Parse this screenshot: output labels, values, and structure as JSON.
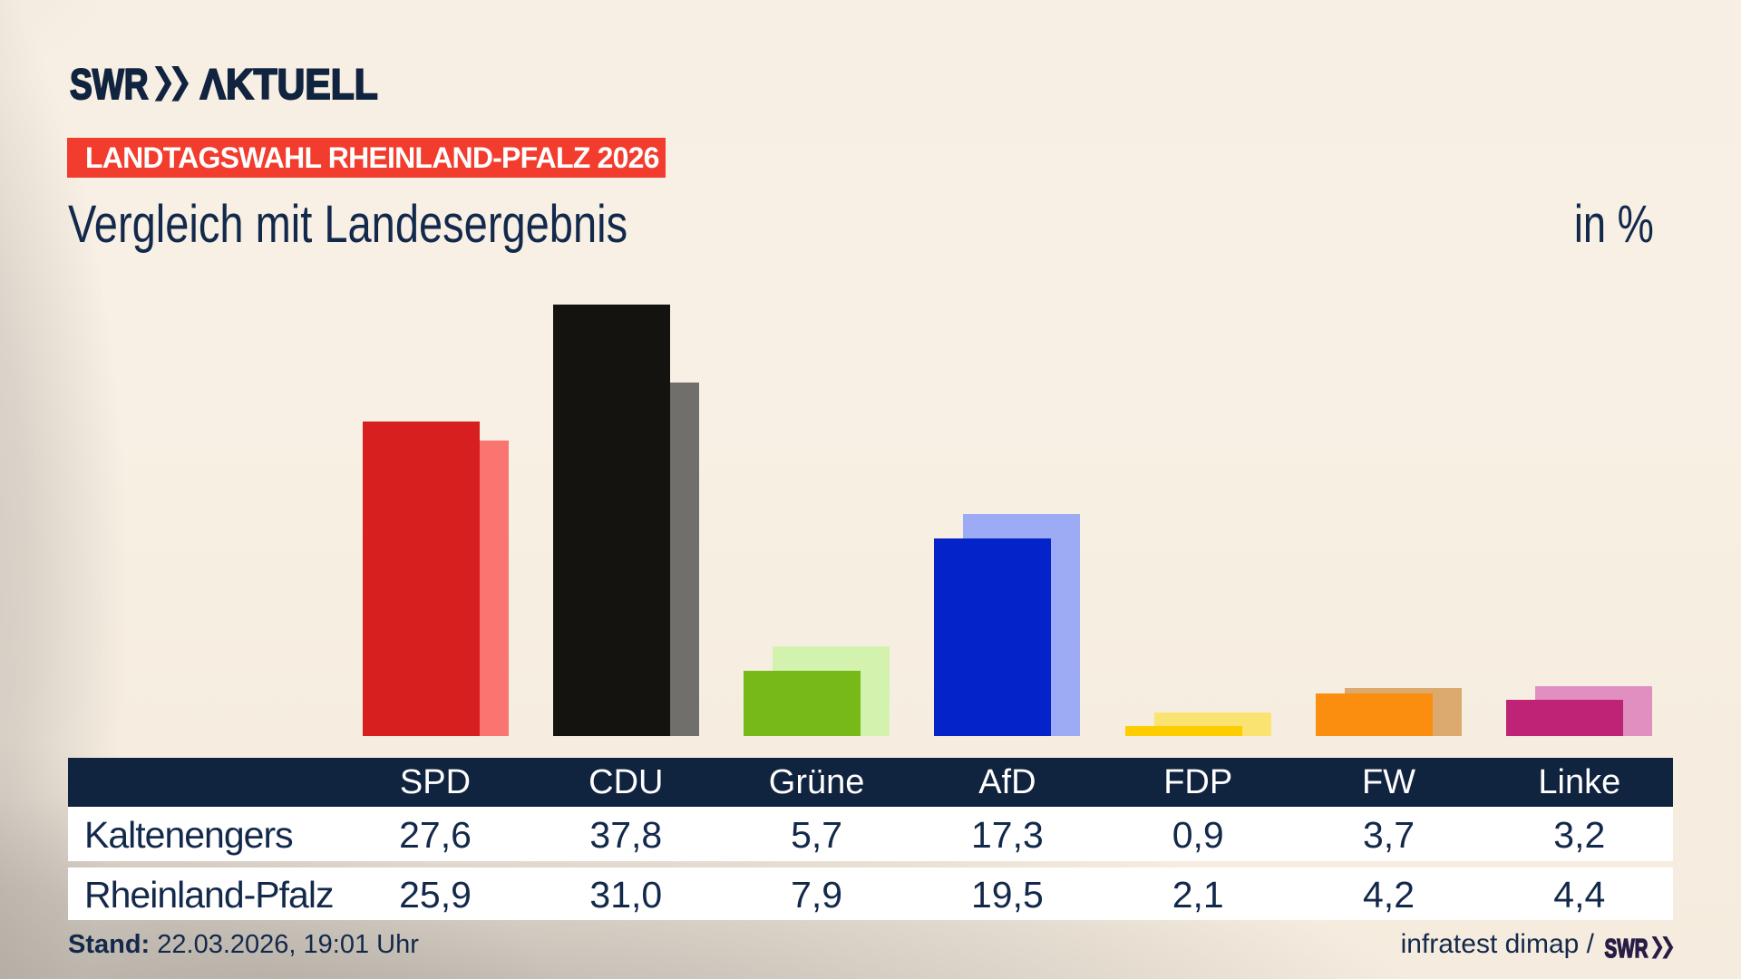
{
  "brand": {
    "name": "SWR",
    "suffix": "AKTUELL",
    "logo_display_suffix": "ΛKTUELL",
    "color": "#10233f"
  },
  "header": {
    "badge": "LANDTAGSWAHL RHEINLAND-PFALZ 2026",
    "badge_bg": "#f23c2d",
    "badge_fg": "#ffffff",
    "title": "Vergleich mit Landesergebnis",
    "unit_label": "in %",
    "text_color": "#13294b"
  },
  "chart_data": {
    "type": "bar",
    "title": "Vergleich mit Landesergebnis",
    "unit": "in %",
    "categories": [
      "SPD",
      "CDU",
      "Grüne",
      "AfD",
      "FDP",
      "FW",
      "Linke"
    ],
    "series": [
      {
        "name": "Kaltenengers",
        "values": [
          27.6,
          37.8,
          5.7,
          17.3,
          0.9,
          3.7,
          3.2
        ]
      },
      {
        "name": "Rheinland-Pfalz",
        "values": [
          25.9,
          31.0,
          7.9,
          19.5,
          2.1,
          4.2,
          4.4
        ]
      }
    ],
    "bar_colors_front": [
      "#d71f1f",
      "#151310",
      "#76b918",
      "#0424c9",
      "#fdcd00",
      "#fb8d0f",
      "#bf2375"
    ],
    "bar_colors_back": [
      "#fb7570",
      "#716f6b",
      "#d3f2ae",
      "#9cabf4",
      "#fbe372",
      "#dca96e",
      "#e18fc0"
    ],
    "ylim": [
      0,
      40
    ],
    "grid": false,
    "legend": false
  },
  "table": {
    "header_bg": "#10233f",
    "header_fg": "#ffffff",
    "row_bg": "#ffffff",
    "text_color": "#13294b",
    "columns": [
      "SPD",
      "CDU",
      "Grüne",
      "AfD",
      "FDP",
      "FW",
      "Linke"
    ],
    "rows": [
      {
        "label": "Kaltenengers",
        "values": [
          "27,6",
          "37,8",
          "5,7",
          "17,3",
          "0,9",
          "3,7",
          "3,2"
        ]
      },
      {
        "label": "Rheinland-Pfalz",
        "values": [
          "25,9",
          "31,0",
          "7,9",
          "19,5",
          "2,1",
          "4,2",
          "4,4"
        ]
      }
    ]
  },
  "footer": {
    "stand_label": "Stand:",
    "stand_value": "22.03.2026, 19:01 Uhr",
    "source_text": "infratest dimap /",
    "source_logo": "SWR",
    "source_logo_color": "#271c44"
  }
}
